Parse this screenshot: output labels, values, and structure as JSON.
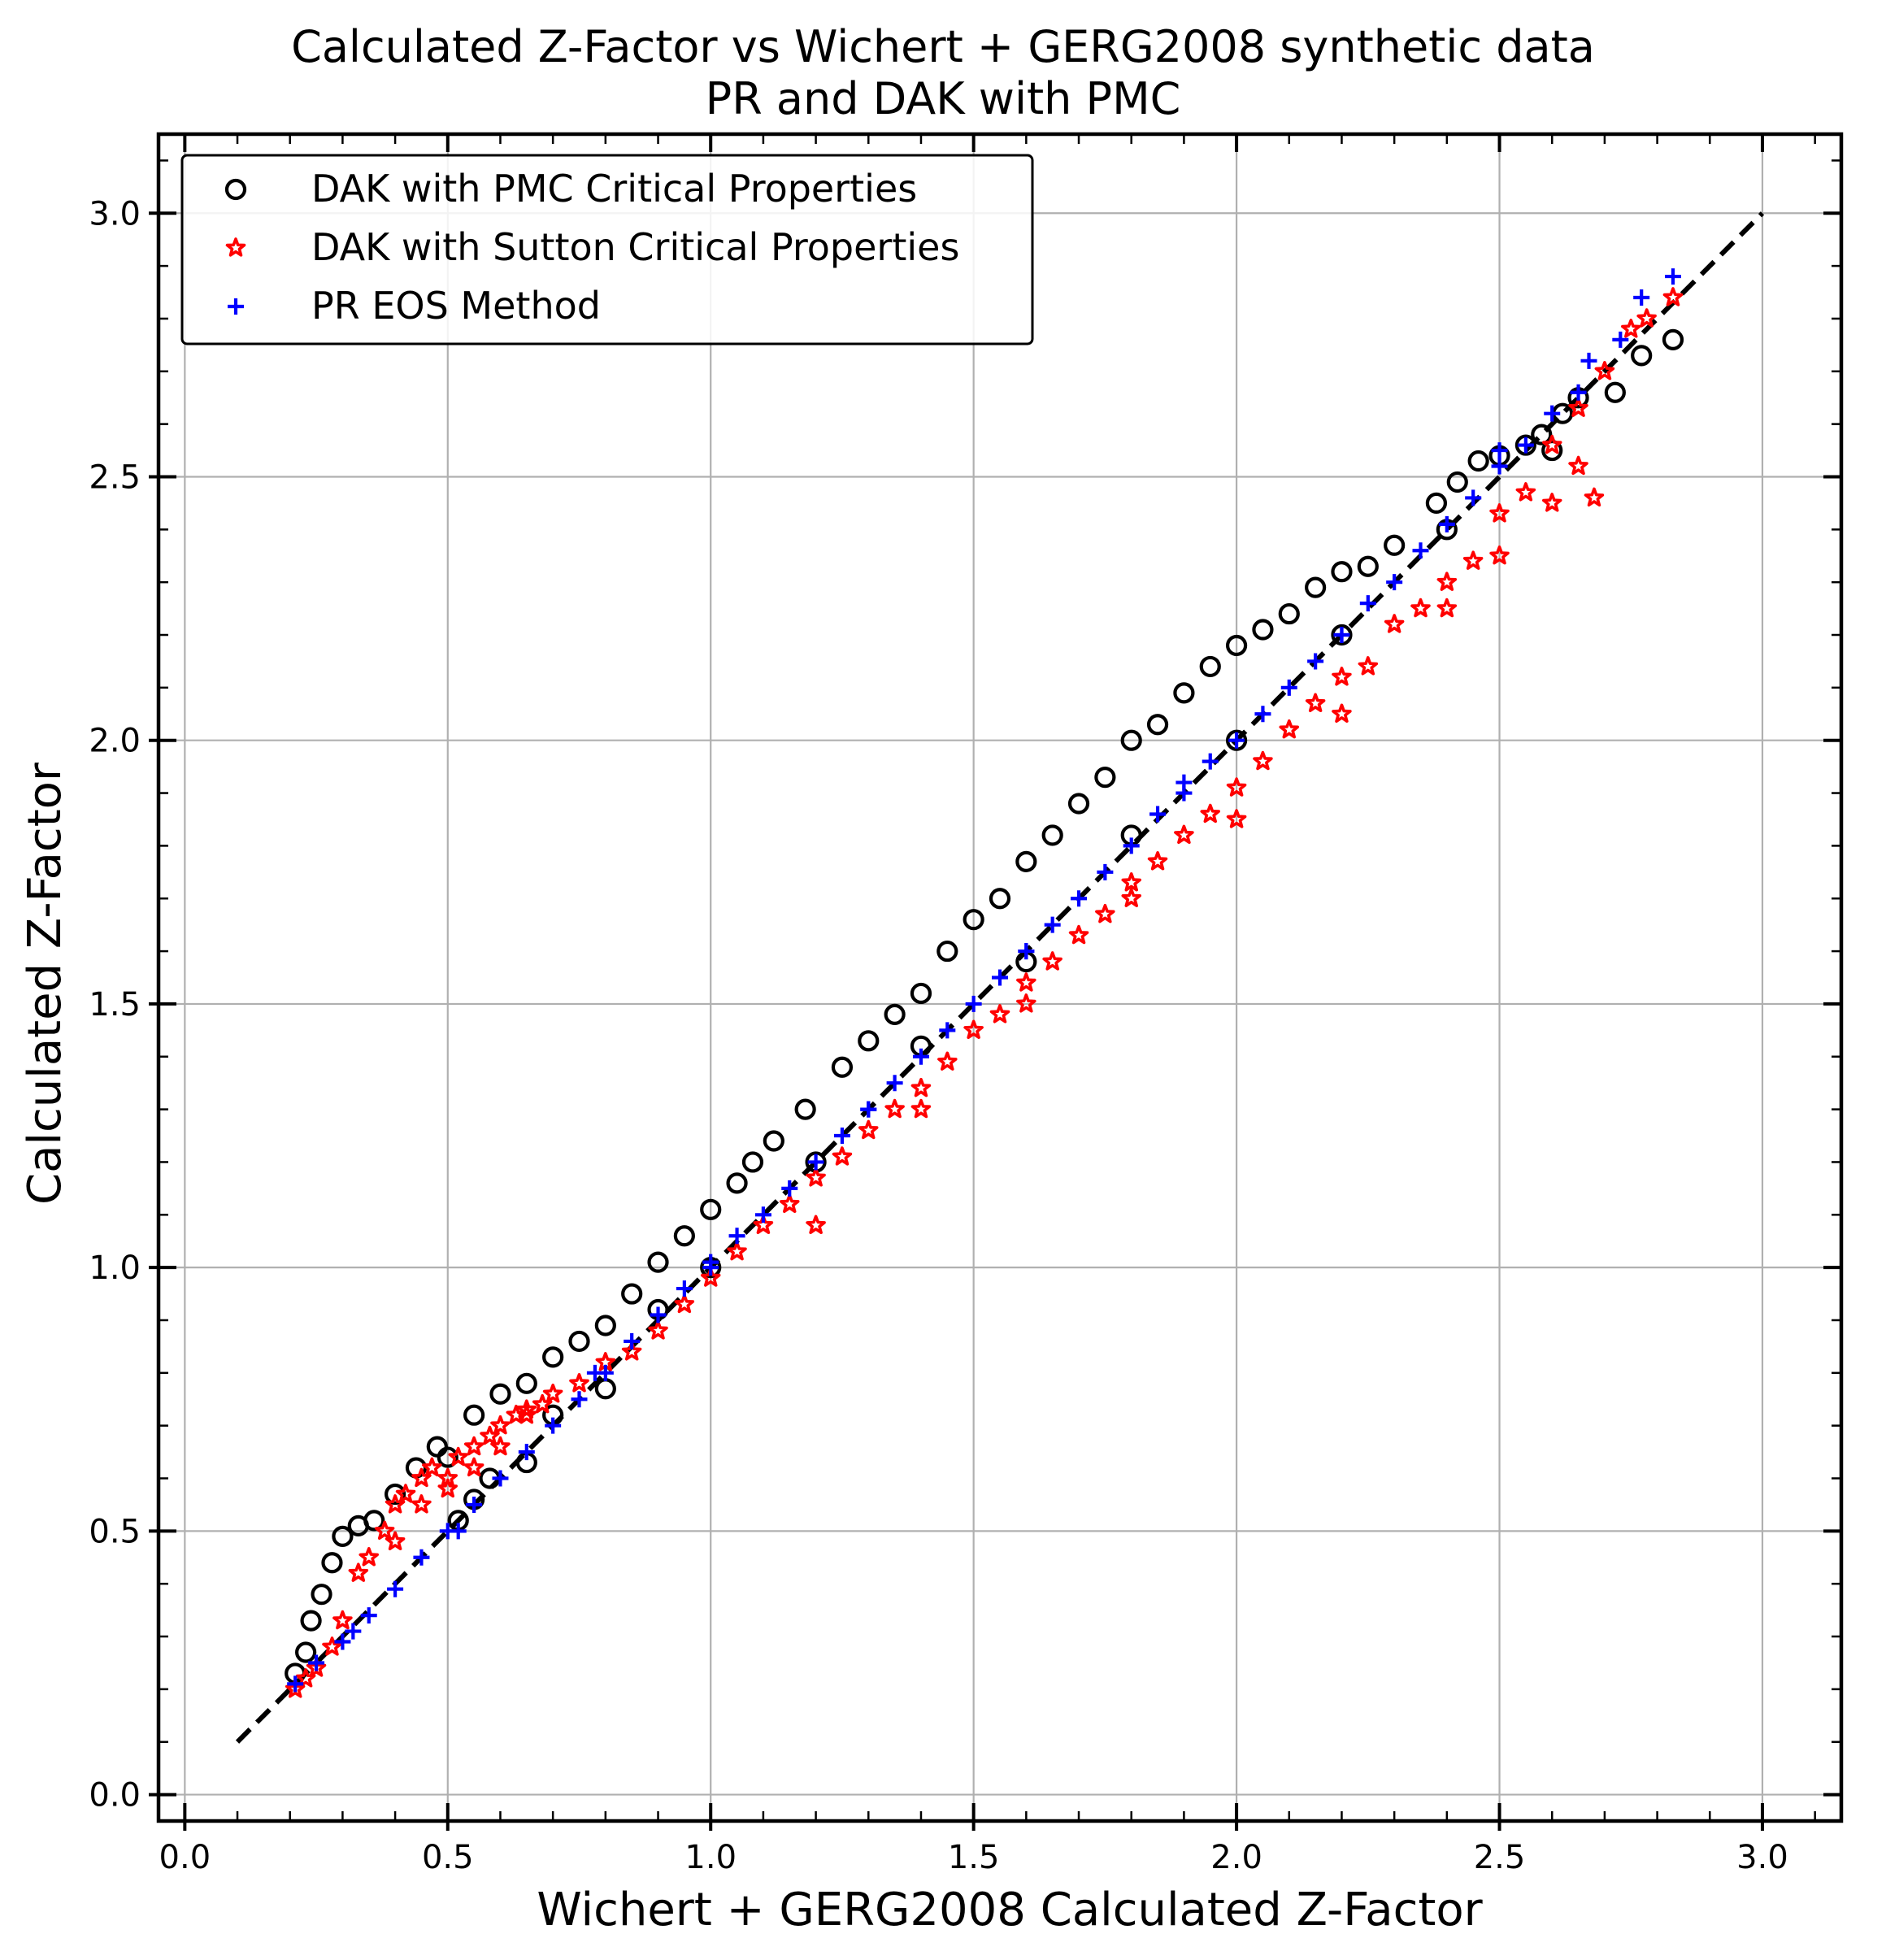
{
  "chart_data": {
    "type": "scatter",
    "title": "Calculated Z-Factor vs Wichert + GERG2008 synthetic data",
    "subtitle": "PR and DAK with PMC",
    "xlabel": "Wichert + GERG2008 Calculated Z-Factor",
    "ylabel": "Calculated Z-Factor",
    "xlim": [
      -0.05,
      3.15
    ],
    "ylim": [
      -0.05,
      3.15
    ],
    "xticks": [
      0.0,
      0.5,
      1.0,
      1.5,
      2.0,
      2.5,
      3.0
    ],
    "yticks": [
      0.0,
      0.5,
      1.0,
      1.5,
      2.0,
      2.5,
      3.0
    ],
    "xtick_labels": [
      "0.0",
      "0.5",
      "1.0",
      "1.5",
      "2.0",
      "2.5",
      "3.0"
    ],
    "ytick_labels": [
      "0.0",
      "0.5",
      "1.0",
      "1.5",
      "2.0",
      "2.5",
      "3.0"
    ],
    "grid": true,
    "legend_position": "top-left",
    "reference_line": {
      "x": [
        0.1,
        3.0
      ],
      "y": [
        0.1,
        3.0
      ],
      "style": "dashed",
      "color": "#000000"
    },
    "series": [
      {
        "name": "DAK with PMC Critical Properties",
        "marker": "circle-open",
        "color": "#000000",
        "x": [
          0.21,
          0.23,
          0.24,
          0.26,
          0.28,
          0.3,
          0.33,
          0.36,
          0.4,
          0.44,
          0.48,
          0.5,
          0.55,
          0.6,
          0.65,
          0.7,
          0.75,
          0.8,
          0.85,
          0.9,
          0.95,
          1.0,
          1.05,
          1.08,
          1.12,
          1.18,
          1.25,
          1.3,
          1.35,
          1.4,
          1.45,
          1.5,
          1.55,
          1.6,
          1.65,
          1.7,
          1.75,
          1.8,
          1.85,
          1.9,
          1.95,
          2.0,
          2.05,
          2.1,
          2.15,
          2.2,
          2.25,
          2.3,
          2.38,
          2.42,
          2.46,
          2.5,
          2.55,
          2.58,
          2.62,
          2.65,
          2.72,
          2.77,
          2.83,
          0.55,
          0.65,
          0.8,
          1.0,
          1.2,
          1.4,
          1.6,
          1.8,
          2.0,
          2.2,
          2.4,
          2.6,
          0.52,
          0.58,
          0.7,
          0.9
        ],
        "y": [
          0.23,
          0.27,
          0.33,
          0.38,
          0.44,
          0.49,
          0.51,
          0.52,
          0.57,
          0.62,
          0.66,
          0.64,
          0.72,
          0.76,
          0.78,
          0.83,
          0.86,
          0.89,
          0.95,
          1.01,
          1.06,
          1.11,
          1.16,
          1.2,
          1.24,
          1.3,
          1.38,
          1.43,
          1.48,
          1.52,
          1.6,
          1.66,
          1.7,
          1.77,
          1.82,
          1.88,
          1.93,
          2.0,
          2.03,
          2.09,
          2.14,
          2.18,
          2.21,
          2.24,
          2.29,
          2.32,
          2.33,
          2.37,
          2.45,
          2.49,
          2.53,
          2.54,
          2.56,
          2.58,
          2.62,
          2.65,
          2.66,
          2.73,
          2.76,
          0.56,
          0.63,
          0.77,
          1.0,
          1.2,
          1.42,
          1.58,
          1.82,
          2.0,
          2.2,
          2.4,
          2.55,
          0.52,
          0.6,
          0.72,
          0.92
        ]
      },
      {
        "name": "DAK with Sutton Critical Properties",
        "marker": "star",
        "color": "#ff0000",
        "x": [
          0.21,
          0.23,
          0.25,
          0.28,
          0.3,
          0.33,
          0.35,
          0.38,
          0.4,
          0.42,
          0.45,
          0.47,
          0.5,
          0.52,
          0.55,
          0.58,
          0.6,
          0.63,
          0.65,
          0.68,
          0.7,
          0.75,
          0.8,
          0.85,
          0.9,
          0.95,
          1.0,
          1.05,
          1.1,
          1.15,
          1.2,
          1.25,
          1.3,
          1.35,
          1.4,
          1.45,
          1.5,
          1.55,
          1.6,
          1.65,
          1.7,
          1.75,
          1.8,
          1.85,
          1.9,
          1.95,
          2.0,
          2.05,
          2.1,
          2.15,
          2.2,
          2.25,
          2.3,
          2.35,
          2.4,
          2.45,
          2.5,
          2.55,
          2.6,
          2.65,
          2.7,
          2.75,
          2.78,
          2.83,
          0.4,
          0.45,
          0.5,
          0.55,
          0.6,
          0.65,
          1.2,
          1.4,
          1.6,
          1.8,
          2.0,
          2.2,
          2.4,
          2.5,
          2.6,
          2.65,
          2.68
        ],
        "y": [
          0.2,
          0.22,
          0.24,
          0.28,
          0.33,
          0.42,
          0.45,
          0.5,
          0.55,
          0.57,
          0.6,
          0.62,
          0.6,
          0.64,
          0.66,
          0.68,
          0.7,
          0.72,
          0.73,
          0.74,
          0.76,
          0.78,
          0.82,
          0.84,
          0.88,
          0.93,
          0.98,
          1.03,
          1.08,
          1.12,
          1.17,
          1.21,
          1.26,
          1.3,
          1.34,
          1.39,
          1.45,
          1.48,
          1.54,
          1.58,
          1.63,
          1.67,
          1.73,
          1.77,
          1.82,
          1.86,
          1.91,
          1.96,
          2.02,
          2.07,
          2.12,
          2.14,
          2.22,
          2.25,
          2.3,
          2.34,
          2.43,
          2.47,
          2.56,
          2.63,
          2.7,
          2.78,
          2.8,
          2.84,
          0.48,
          0.55,
          0.58,
          0.62,
          0.66,
          0.72,
          1.08,
          1.3,
          1.5,
          1.7,
          1.85,
          2.05,
          2.25,
          2.35,
          2.45,
          2.52,
          2.46
        ]
      },
      {
        "name": "PR EOS Method",
        "marker": "plus",
        "color": "#0000ff",
        "x": [
          0.21,
          0.25,
          0.3,
          0.35,
          0.4,
          0.45,
          0.5,
          0.55,
          0.6,
          0.65,
          0.7,
          0.75,
          0.8,
          0.85,
          0.9,
          0.95,
          1.0,
          1.05,
          1.1,
          1.15,
          1.2,
          1.25,
          1.3,
          1.35,
          1.4,
          1.45,
          1.5,
          1.55,
          1.6,
          1.65,
          1.7,
          1.75,
          1.8,
          1.85,
          1.9,
          1.95,
          2.0,
          2.05,
          2.1,
          2.15,
          2.2,
          2.25,
          2.3,
          2.35,
          2.4,
          2.45,
          2.5,
          2.55,
          2.6,
          2.65,
          2.67,
          2.73,
          2.77,
          2.83,
          0.32,
          0.52,
          0.78,
          1.0,
          1.3,
          1.6,
          1.9,
          2.2,
          2.5
        ],
        "y": [
          0.21,
          0.25,
          0.29,
          0.34,
          0.39,
          0.45,
          0.5,
          0.55,
          0.6,
          0.65,
          0.7,
          0.75,
          0.8,
          0.86,
          0.91,
          0.96,
          1.01,
          1.06,
          1.1,
          1.15,
          1.2,
          1.25,
          1.3,
          1.35,
          1.4,
          1.45,
          1.5,
          1.55,
          1.6,
          1.65,
          1.7,
          1.75,
          1.8,
          1.86,
          1.9,
          1.96,
          2.0,
          2.05,
          2.1,
          2.15,
          2.2,
          2.26,
          2.3,
          2.36,
          2.41,
          2.46,
          2.52,
          2.56,
          2.62,
          2.66,
          2.72,
          2.76,
          2.84,
          2.88,
          0.31,
          0.5,
          0.8,
          1.0,
          1.3,
          1.6,
          1.92,
          2.2,
          2.55
        ]
      }
    ]
  }
}
